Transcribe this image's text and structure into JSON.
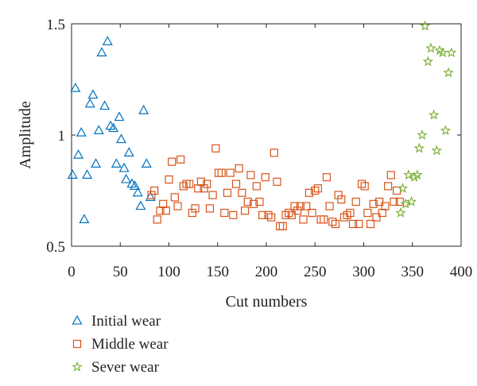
{
  "chart_data": {
    "type": "scatter",
    "title": "",
    "xlabel": "Cut numbers",
    "ylabel": "Amplitude",
    "xlim": [
      0,
      400
    ],
    "ylim": [
      0.5,
      1.5
    ],
    "xticks": [
      0,
      50,
      100,
      150,
      200,
      250,
      300,
      350,
      400
    ],
    "yticks": [
      0.5,
      1,
      1.5
    ],
    "xtick_labels": [
      "0",
      "50",
      "100",
      "150",
      "200",
      "250",
      "300",
      "350",
      "400"
    ],
    "ytick_labels": [
      "0.5",
      "1",
      "1.5"
    ],
    "grid": false,
    "legend_position": "below-left",
    "series": [
      {
        "name": "Initial wear",
        "marker": "triangle",
        "color": "#0072BD",
        "points": [
          [
            1,
            0.82
          ],
          [
            4,
            1.21
          ],
          [
            7,
            0.91
          ],
          [
            10,
            1.01
          ],
          [
            13,
            0.62
          ],
          [
            16,
            0.82
          ],
          [
            19,
            1.14
          ],
          [
            22,
            1.18
          ],
          [
            25,
            0.87
          ],
          [
            28,
            1.02
          ],
          [
            31,
            1.37
          ],
          [
            34,
            1.13
          ],
          [
            37,
            1.42
          ],
          [
            40,
            1.04
          ],
          [
            43,
            1.03
          ],
          [
            46,
            0.87
          ],
          [
            49,
            1.08
          ],
          [
            51,
            0.98
          ],
          [
            54,
            0.85
          ],
          [
            56,
            0.8
          ],
          [
            59,
            0.92
          ],
          [
            62,
            0.78
          ],
          [
            65,
            0.77
          ],
          [
            68,
            0.74
          ],
          [
            71,
            0.68
          ],
          [
            74,
            1.11
          ],
          [
            77,
            0.87
          ],
          [
            81,
            0.72
          ]
        ]
      },
      {
        "name": "Middle wear",
        "marker": "square",
        "color": "#D95319",
        "points": [
          [
            82,
            0.73
          ],
          [
            85,
            0.75
          ],
          [
            88,
            0.62
          ],
          [
            91,
            0.66
          ],
          [
            94,
            0.69
          ],
          [
            97,
            0.66
          ],
          [
            100,
            0.8
          ],
          [
            103,
            0.88
          ],
          [
            106,
            0.72
          ],
          [
            109,
            0.68
          ],
          [
            112,
            0.89
          ],
          [
            115,
            0.77
          ],
          [
            118,
            0.78
          ],
          [
            121,
            0.78
          ],
          [
            124,
            0.65
          ],
          [
            127,
            0.67
          ],
          [
            130,
            0.76
          ],
          [
            133,
            0.79
          ],
          [
            136,
            0.76
          ],
          [
            139,
            0.78
          ],
          [
            142,
            0.67
          ],
          [
            145,
            0.73
          ],
          [
            148,
            0.94
          ],
          [
            151,
            0.83
          ],
          [
            154,
            0.83
          ],
          [
            157,
            0.65
          ],
          [
            160,
            0.74
          ],
          [
            163,
            0.83
          ],
          [
            166,
            0.64
          ],
          [
            169,
            0.78
          ],
          [
            172,
            0.85
          ],
          [
            175,
            0.74
          ],
          [
            178,
            0.66
          ],
          [
            181,
            0.7
          ],
          [
            184,
            0.82
          ],
          [
            187,
            0.69
          ],
          [
            190,
            0.77
          ],
          [
            193,
            0.7
          ],
          [
            196,
            0.64
          ],
          [
            199,
            0.81
          ],
          [
            202,
            0.64
          ],
          [
            205,
            0.63
          ],
          [
            208,
            0.92
          ],
          [
            211,
            0.79
          ],
          [
            214,
            0.59
          ],
          [
            217,
            0.59
          ],
          [
            220,
            0.64
          ],
          [
            223,
            0.65
          ],
          [
            226,
            0.64
          ],
          [
            229,
            0.68
          ],
          [
            232,
            0.66
          ],
          [
            235,
            0.68
          ],
          [
            238,
            0.62
          ],
          [
            241,
            0.68
          ],
          [
            244,
            0.74
          ],
          [
            247,
            0.65
          ],
          [
            250,
            0.75
          ],
          [
            253,
            0.76
          ],
          [
            256,
            0.62
          ],
          [
            259,
            0.62
          ],
          [
            262,
            0.81
          ],
          [
            265,
            0.68
          ],
          [
            268,
            0.61
          ],
          [
            271,
            0.6
          ],
          [
            274,
            0.73
          ],
          [
            277,
            0.71
          ],
          [
            280,
            0.63
          ],
          [
            283,
            0.64
          ],
          [
            286,
            0.65
          ],
          [
            289,
            0.6
          ],
          [
            292,
            0.7
          ],
          [
            295,
            0.6
          ],
          [
            298,
            0.78
          ],
          [
            301,
            0.77
          ],
          [
            304,
            0.65
          ],
          [
            307,
            0.6
          ],
          [
            310,
            0.69
          ],
          [
            313,
            0.63
          ],
          [
            316,
            0.7
          ],
          [
            319,
            0.65
          ],
          [
            322,
            0.68
          ],
          [
            325,
            0.77
          ],
          [
            328,
            0.82
          ],
          [
            331,
            0.7
          ],
          [
            334,
            0.75
          ],
          [
            337,
            0.7
          ]
        ]
      },
      {
        "name": "Sever wear",
        "marker": "star",
        "color": "#77AC30",
        "points": [
          [
            338,
            0.65
          ],
          [
            340,
            0.76
          ],
          [
            343,
            0.69
          ],
          [
            346,
            0.82
          ],
          [
            349,
            0.7
          ],
          [
            352,
            0.81
          ],
          [
            355,
            0.82
          ],
          [
            357,
            0.94
          ],
          [
            360,
            1.0
          ],
          [
            363,
            1.49
          ],
          [
            366,
            1.33
          ],
          [
            369,
            1.39
          ],
          [
            372,
            1.09
          ],
          [
            375,
            0.93
          ],
          [
            378,
            1.38
          ],
          [
            381,
            1.37
          ],
          [
            384,
            1.02
          ],
          [
            387,
            1.28
          ],
          [
            390,
            1.37
          ]
        ]
      }
    ]
  }
}
